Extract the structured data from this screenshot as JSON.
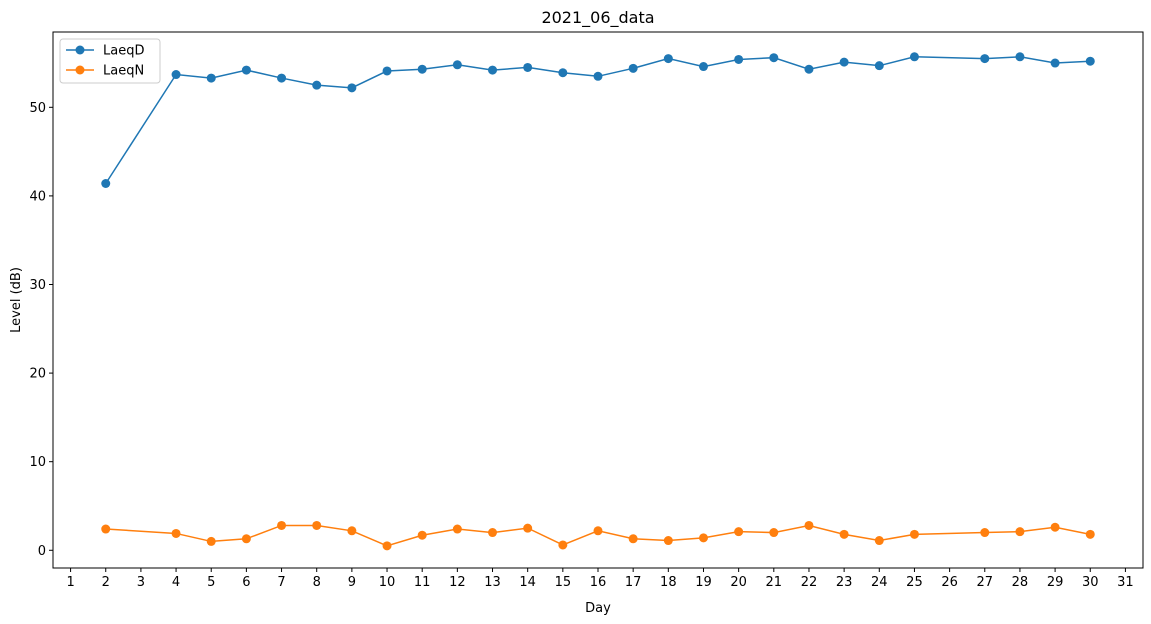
{
  "chart_data": {
    "type": "line",
    "title": "2021_06_data",
    "xlabel": "Day",
    "ylabel": "Level (dB)",
    "xlim": [
      0.5,
      31.5
    ],
    "ylim": [
      -2,
      58.5
    ],
    "xticks": [
      1,
      2,
      3,
      4,
      5,
      6,
      7,
      8,
      9,
      10,
      11,
      12,
      13,
      14,
      15,
      16,
      17,
      18,
      19,
      20,
      21,
      22,
      23,
      24,
      25,
      26,
      27,
      28,
      29,
      30,
      31
    ],
    "yticks": [
      0,
      10,
      20,
      30,
      40,
      50
    ],
    "grid": false,
    "legend_position": "top-left",
    "x": [
      2,
      4,
      5,
      6,
      7,
      8,
      9,
      10,
      11,
      12,
      13,
      14,
      15,
      16,
      17,
      18,
      19,
      20,
      21,
      22,
      23,
      24,
      25,
      27,
      28,
      29,
      30
    ],
    "series": [
      {
        "name": "LaeqD",
        "color": "#1f77b4",
        "values": [
          41.4,
          53.7,
          53.3,
          54.2,
          53.3,
          52.5,
          52.2,
          54.1,
          54.3,
          54.8,
          54.2,
          54.5,
          53.9,
          53.5,
          54.4,
          55.5,
          54.6,
          55.4,
          55.6,
          54.3,
          55.1,
          54.7,
          55.7,
          55.5,
          55.7,
          55.0,
          55.2
        ]
      },
      {
        "name": "LaeqN",
        "color": "#ff7f0e",
        "values": [
          2.4,
          1.9,
          1.0,
          1.3,
          2.8,
          2.8,
          2.2,
          0.5,
          1.7,
          2.4,
          2.0,
          2.5,
          0.6,
          2.2,
          1.3,
          1.1,
          1.4,
          2.1,
          2.0,
          2.8,
          1.8,
          1.1,
          1.8,
          2.0,
          2.1,
          2.6,
          1.8
        ]
      }
    ]
  }
}
